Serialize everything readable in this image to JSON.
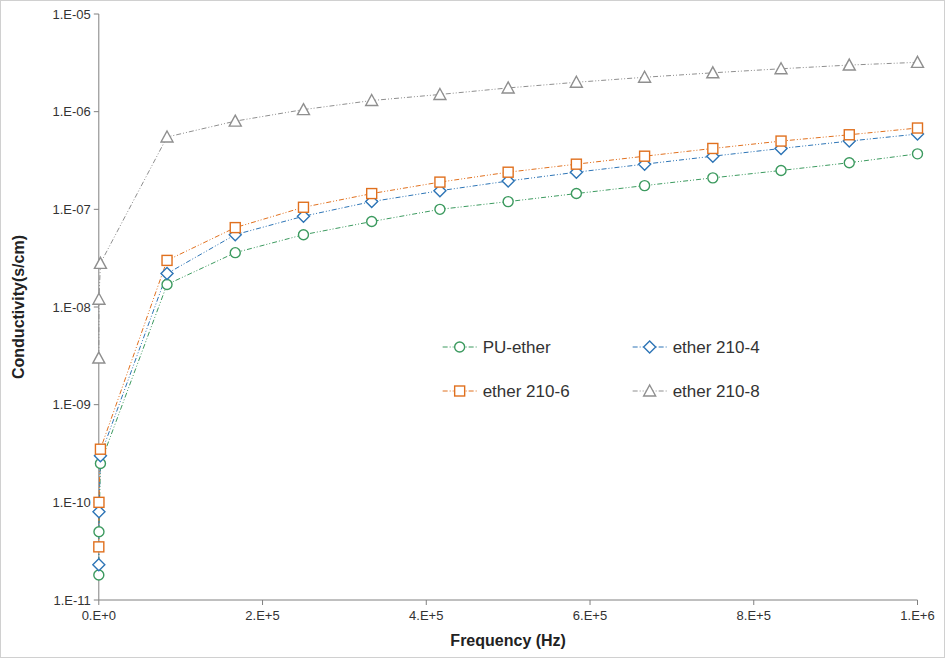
{
  "chart_data": {
    "type": "line",
    "x_label": "Frequency (Hz)",
    "y_label": "Conductivity(s/cm)",
    "log": "y",
    "grid": false,
    "legend": "center",
    "marker": "circle",
    "x": [
      20,
      200,
      2000,
      83333,
      166667,
      250000,
      333333,
      416667,
      500000,
      583333,
      666667,
      750000,
      833333,
      916667,
      1000000
    ],
    "xlim": [
      0,
      1000000
    ],
    "xticks": [
      {
        "value": 0,
        "label": "0.E+0"
      },
      {
        "value": 200000,
        "label": "2.E+5"
      },
      {
        "value": 400000,
        "label": "4.E+5"
      },
      {
        "value": 600000,
        "label": "6.E+5"
      },
      {
        "value": 800000,
        "label": "8.E+5"
      },
      {
        "value": 1000000,
        "label": "1.E+6"
      }
    ],
    "ylim": [
      1e-11,
      1e-05
    ],
    "yticks": [
      {
        "value": 1e-11,
        "label": "1.E-11"
      },
      {
        "value": 1e-10,
        "label": "1.E-10"
      },
      {
        "value": 1e-09,
        "label": "1.E-09"
      },
      {
        "value": 1e-08,
        "label": "1.E-08"
      },
      {
        "value": 1e-07,
        "label": "1.E-07"
      },
      {
        "value": 1e-06,
        "label": "1.E-06"
      },
      {
        "value": 1e-05,
        "label": "1.E-05"
      }
    ],
    "series": [
      {
        "name": "PU-ether",
        "color": "#3c9a5f",
        "marker": "circle",
        "line_style": "dashed",
        "values": [
          1.8e-11,
          5e-11,
          2.5e-10,
          1.7e-08,
          3.6e-08,
          5.5e-08,
          7.5e-08,
          1e-07,
          1.2e-07,
          1.45e-07,
          1.75e-07,
          2.1e-07,
          2.5e-07,
          3e-07,
          3.7e-07
        ]
      },
      {
        "name": "ether 210-4",
        "color": "#2e75b6",
        "marker": "diamond",
        "line_style": "dashed",
        "values": [
          2.3e-11,
          8e-11,
          3e-10,
          2.2e-08,
          5.5e-08,
          8.5e-08,
          1.2e-07,
          1.55e-07,
          1.95e-07,
          2.4e-07,
          2.9e-07,
          3.5e-07,
          4.2e-07,
          5e-07,
          5.9e-07
        ]
      },
      {
        "name": "ether 210-6",
        "color": "#e0701e",
        "marker": "square",
        "line_style": "dashed",
        "values": [
          3.5e-11,
          1e-10,
          3.5e-10,
          3e-08,
          6.5e-08,
          1.05e-07,
          1.45e-07,
          1.9e-07,
          2.4e-07,
          2.9e-07,
          3.5e-07,
          4.2e-07,
          5e-07,
          5.8e-07,
          6.8e-07
        ]
      },
      {
        "name": "ether 210-8",
        "color": "#8f8f8f",
        "marker": "triangle",
        "line_style": "dashed",
        "values": [
          3e-09,
          1.2e-08,
          2.8e-08,
          5.5e-07,
          8e-07,
          1.05e-06,
          1.3e-06,
          1.5e-06,
          1.75e-06,
          2e-06,
          2.25e-06,
          2.5e-06,
          2.75e-06,
          3e-06,
          3.2e-06
        ]
      }
    ]
  }
}
